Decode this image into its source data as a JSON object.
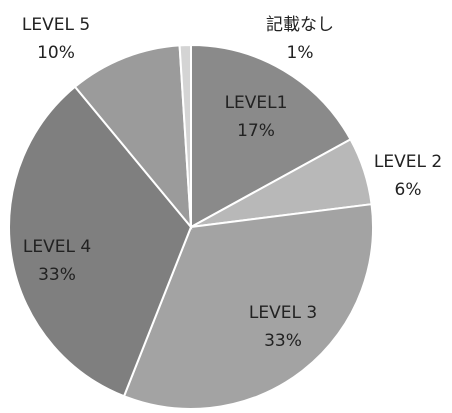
{
  "chart_data": {
    "type": "pie",
    "slices": [
      {
        "name": "LEVEL1",
        "value": 17,
        "label": "17%",
        "color": "#8a8a8a"
      },
      {
        "name": "LEVEL 2",
        "value": 6,
        "label": "6%",
        "color": "#b8b8b8"
      },
      {
        "name": "LEVEL 3",
        "value": 33,
        "label": "33%",
        "color": "#a3a3a3"
      },
      {
        "name": "LEVEL 4",
        "value": 33,
        "label": "33%",
        "color": "#7f7f7f"
      },
      {
        "name": "LEVEL 5",
        "value": 10,
        "label": "10%",
        "color": "#9b9b9b"
      },
      {
        "name": "記載なし",
        "value": 1,
        "label": "1%",
        "color": "#d4d4d4"
      }
    ],
    "start_angle_deg": 0,
    "direction": "clockwise",
    "legend": "none",
    "data_labels": "category and percentage"
  }
}
